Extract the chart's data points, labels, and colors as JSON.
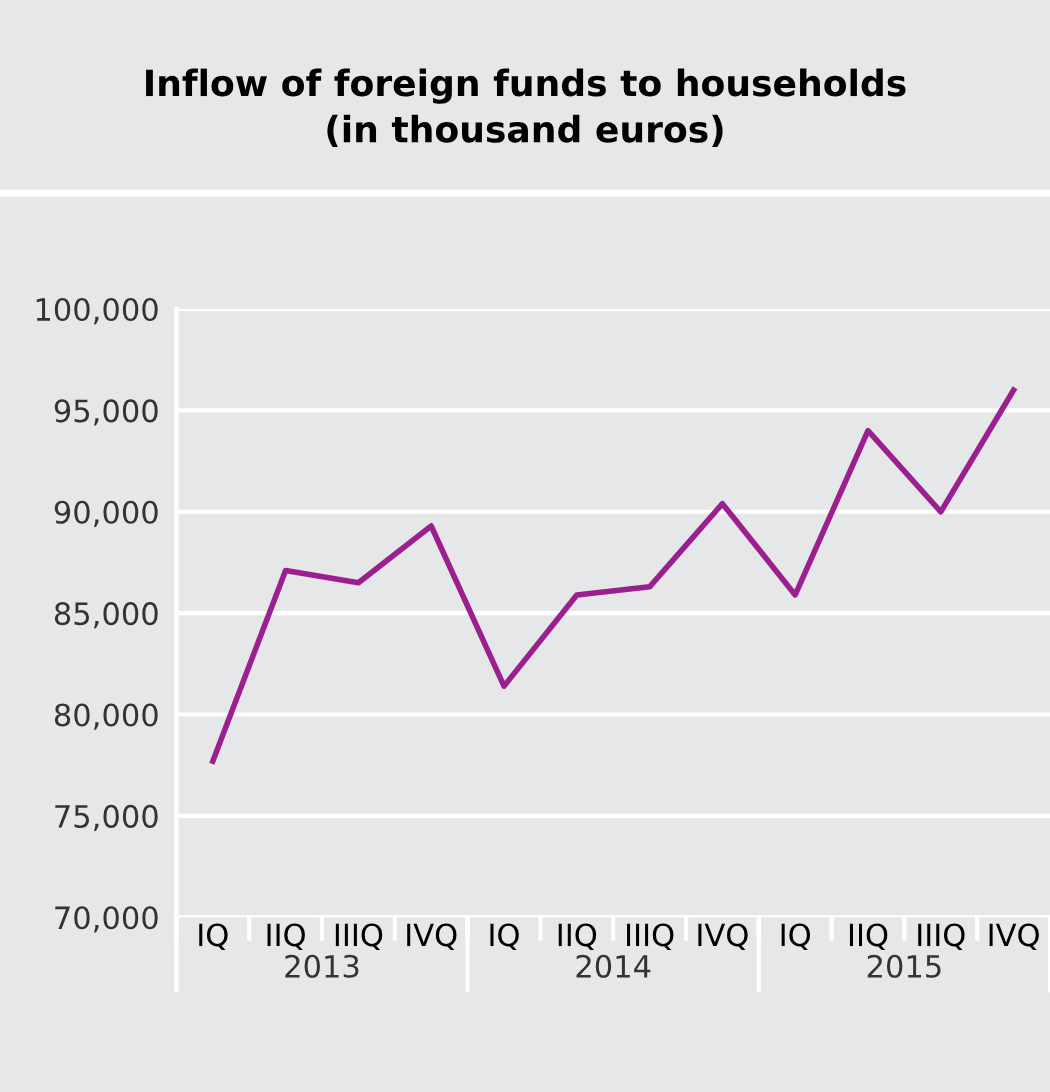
{
  "chart_data": {
    "type": "line",
    "title": "Inflow of foreign funds to households\n(in thousand euros)",
    "categories": [
      "IQ",
      "IIQ",
      "IIIQ",
      "IVQ",
      "IQ",
      "IIQ",
      "IIIQ",
      "IVQ",
      "IQ",
      "IIQ",
      "IIIQ",
      "IVQ"
    ],
    "series": [
      {
        "color": "#9b1f8f",
        "values": [
          77700,
          87100,
          86500,
          89300,
          81400,
          85900,
          86300,
          90400,
          85900,
          94000,
          90000,
          96000
        ]
      }
    ],
    "ylim": [
      70000,
      100000
    ],
    "yticks": [
      {
        "value": 70000,
        "label": "70,000"
      },
      {
        "value": 75000,
        "label": "75,000"
      },
      {
        "value": 80000,
        "label": "80,000"
      },
      {
        "value": 85000,
        "label": "85,000"
      },
      {
        "value": 90000,
        "label": "90,000"
      },
      {
        "value": 95000,
        "label": "95,000"
      },
      {
        "value": 100000,
        "label": "100,000"
      }
    ],
    "grid": "y",
    "legend": false,
    "marker": "none",
    "line_style": "solid",
    "annotations": [
      "2013",
      "2014",
      "2015"
    ]
  }
}
